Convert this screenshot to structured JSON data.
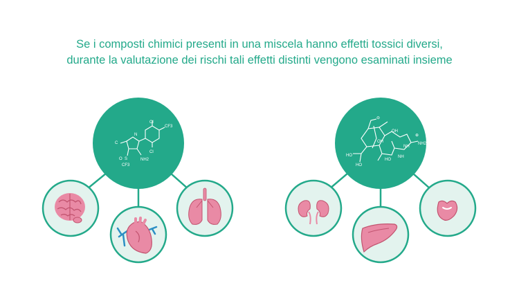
{
  "caption": {
    "line1": "Se i composti chimici presenti in una miscela hanno effetti tossici diversi,",
    "line2": "durante la valutazione dei rischi tali effetti distinti vengono esaminati insieme"
  },
  "colors": {
    "primary": "#23a98a",
    "organ_fill": "#e98aa5",
    "organ_bg": "#e3f3ee",
    "vessel": "#2b8fc4"
  },
  "compound_left": {
    "labels": {
      "cl_top": "Cl",
      "cf3_ring": "CF3",
      "cl_bottom": "Cl",
      "c": "C",
      "n_ring": "N",
      "s": "S",
      "o": "O",
      "cf3_s": "CF3",
      "nh2": "NH2"
    },
    "organs": [
      "brain-icon",
      "heart-icon",
      "lungs-icon"
    ]
  },
  "compound_right": {
    "labels": {
      "o_minus": "⊖",
      "oh_top": "OH",
      "oh_mid": "OH",
      "plus": "⊕",
      "nh2": "NH2",
      "nh": "NH",
      "ho_left": "HO",
      "oh_left": "HO",
      "ho_bottom": "HO",
      "nh_bottom": "NH"
    },
    "organs": [
      "kidneys-icon",
      "liver-icon",
      "stomach-icon"
    ]
  }
}
